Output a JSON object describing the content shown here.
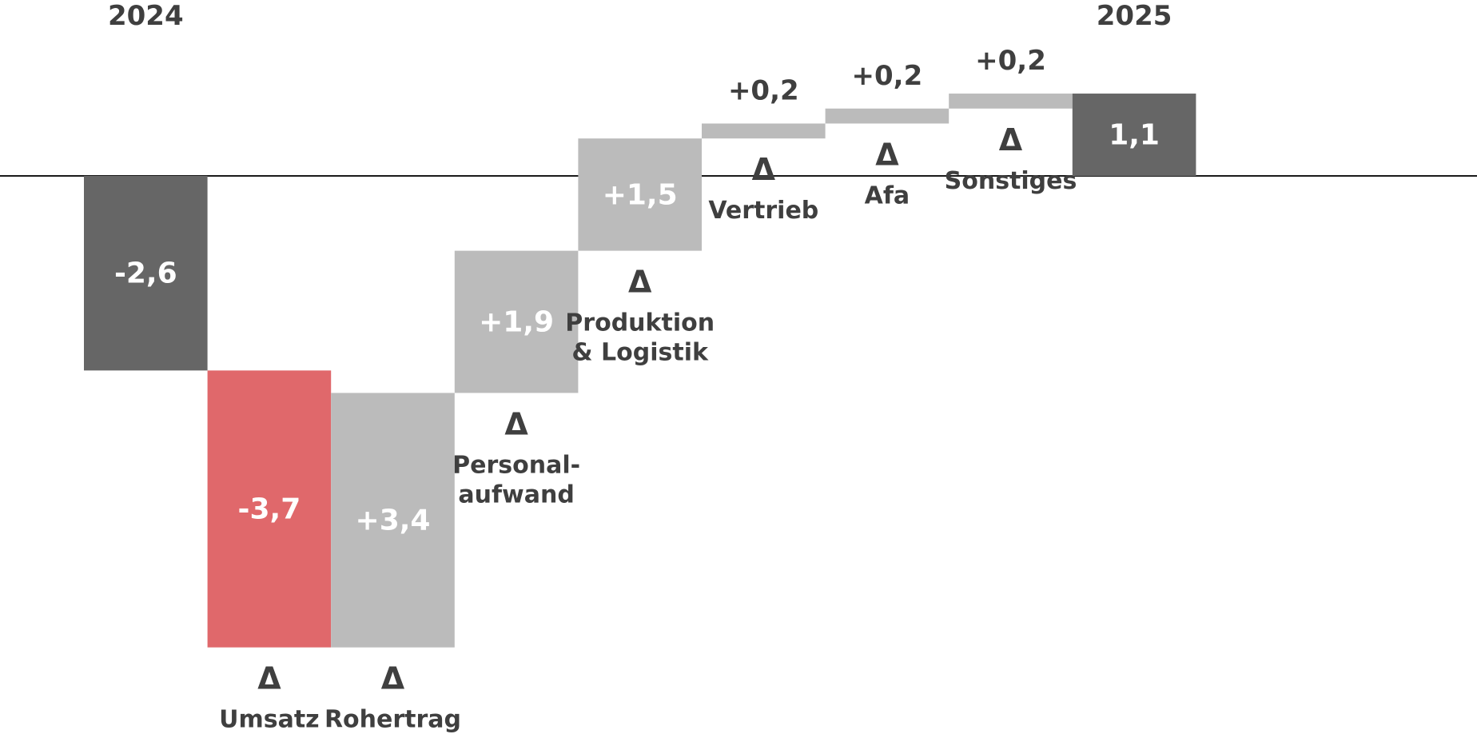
{
  "chart_data": {
    "type": "waterfall",
    "start": {
      "label": "2024",
      "value": -2.6,
      "value_label": "-2,6"
    },
    "end": {
      "label": "2025",
      "value": 1.1,
      "value_label": "1,1"
    },
    "steps": [
      {
        "delta_symbol": "Δ",
        "lines": [
          "Umsatz"
        ],
        "value": -3.7,
        "value_label": "-3,7",
        "label_pos": "below",
        "value_pos": "inside"
      },
      {
        "delta_symbol": "Δ",
        "lines": [
          "Rohertrag"
        ],
        "value": 3.4,
        "value_label": "+3,4",
        "label_pos": "below",
        "value_pos": "inside"
      },
      {
        "delta_symbol": "Δ",
        "lines": [
          "Personal-",
          "aufwand"
        ],
        "value": 1.9,
        "value_label": "+1,9",
        "label_pos": "below",
        "value_pos": "inside"
      },
      {
        "delta_symbol": "Δ",
        "lines": [
          "Produktion",
          "& Logistik"
        ],
        "value": 1.5,
        "value_label": "+1,5",
        "label_pos": "below",
        "value_pos": "inside"
      },
      {
        "delta_symbol": "Δ",
        "lines": [
          "Vertrieb"
        ],
        "value": 0.2,
        "value_label": "+0,2",
        "label_pos": "below",
        "value_pos": "above"
      },
      {
        "delta_symbol": "Δ",
        "lines": [
          "Afa"
        ],
        "value": 0.2,
        "value_label": "+0,2",
        "label_pos": "below",
        "value_pos": "above"
      },
      {
        "delta_symbol": "Δ",
        "lines": [
          "Sonstiges"
        ],
        "value": 0.2,
        "value_label": "+0,2",
        "label_pos": "below",
        "value_pos": "above"
      }
    ],
    "colors": {
      "total": "#666666",
      "positive": "#bbbbbb",
      "negative": "#e0686b",
      "baseline": "#1a1a1a",
      "label_text": "#3f3f3f",
      "inbar_text": "#ffffff"
    }
  }
}
